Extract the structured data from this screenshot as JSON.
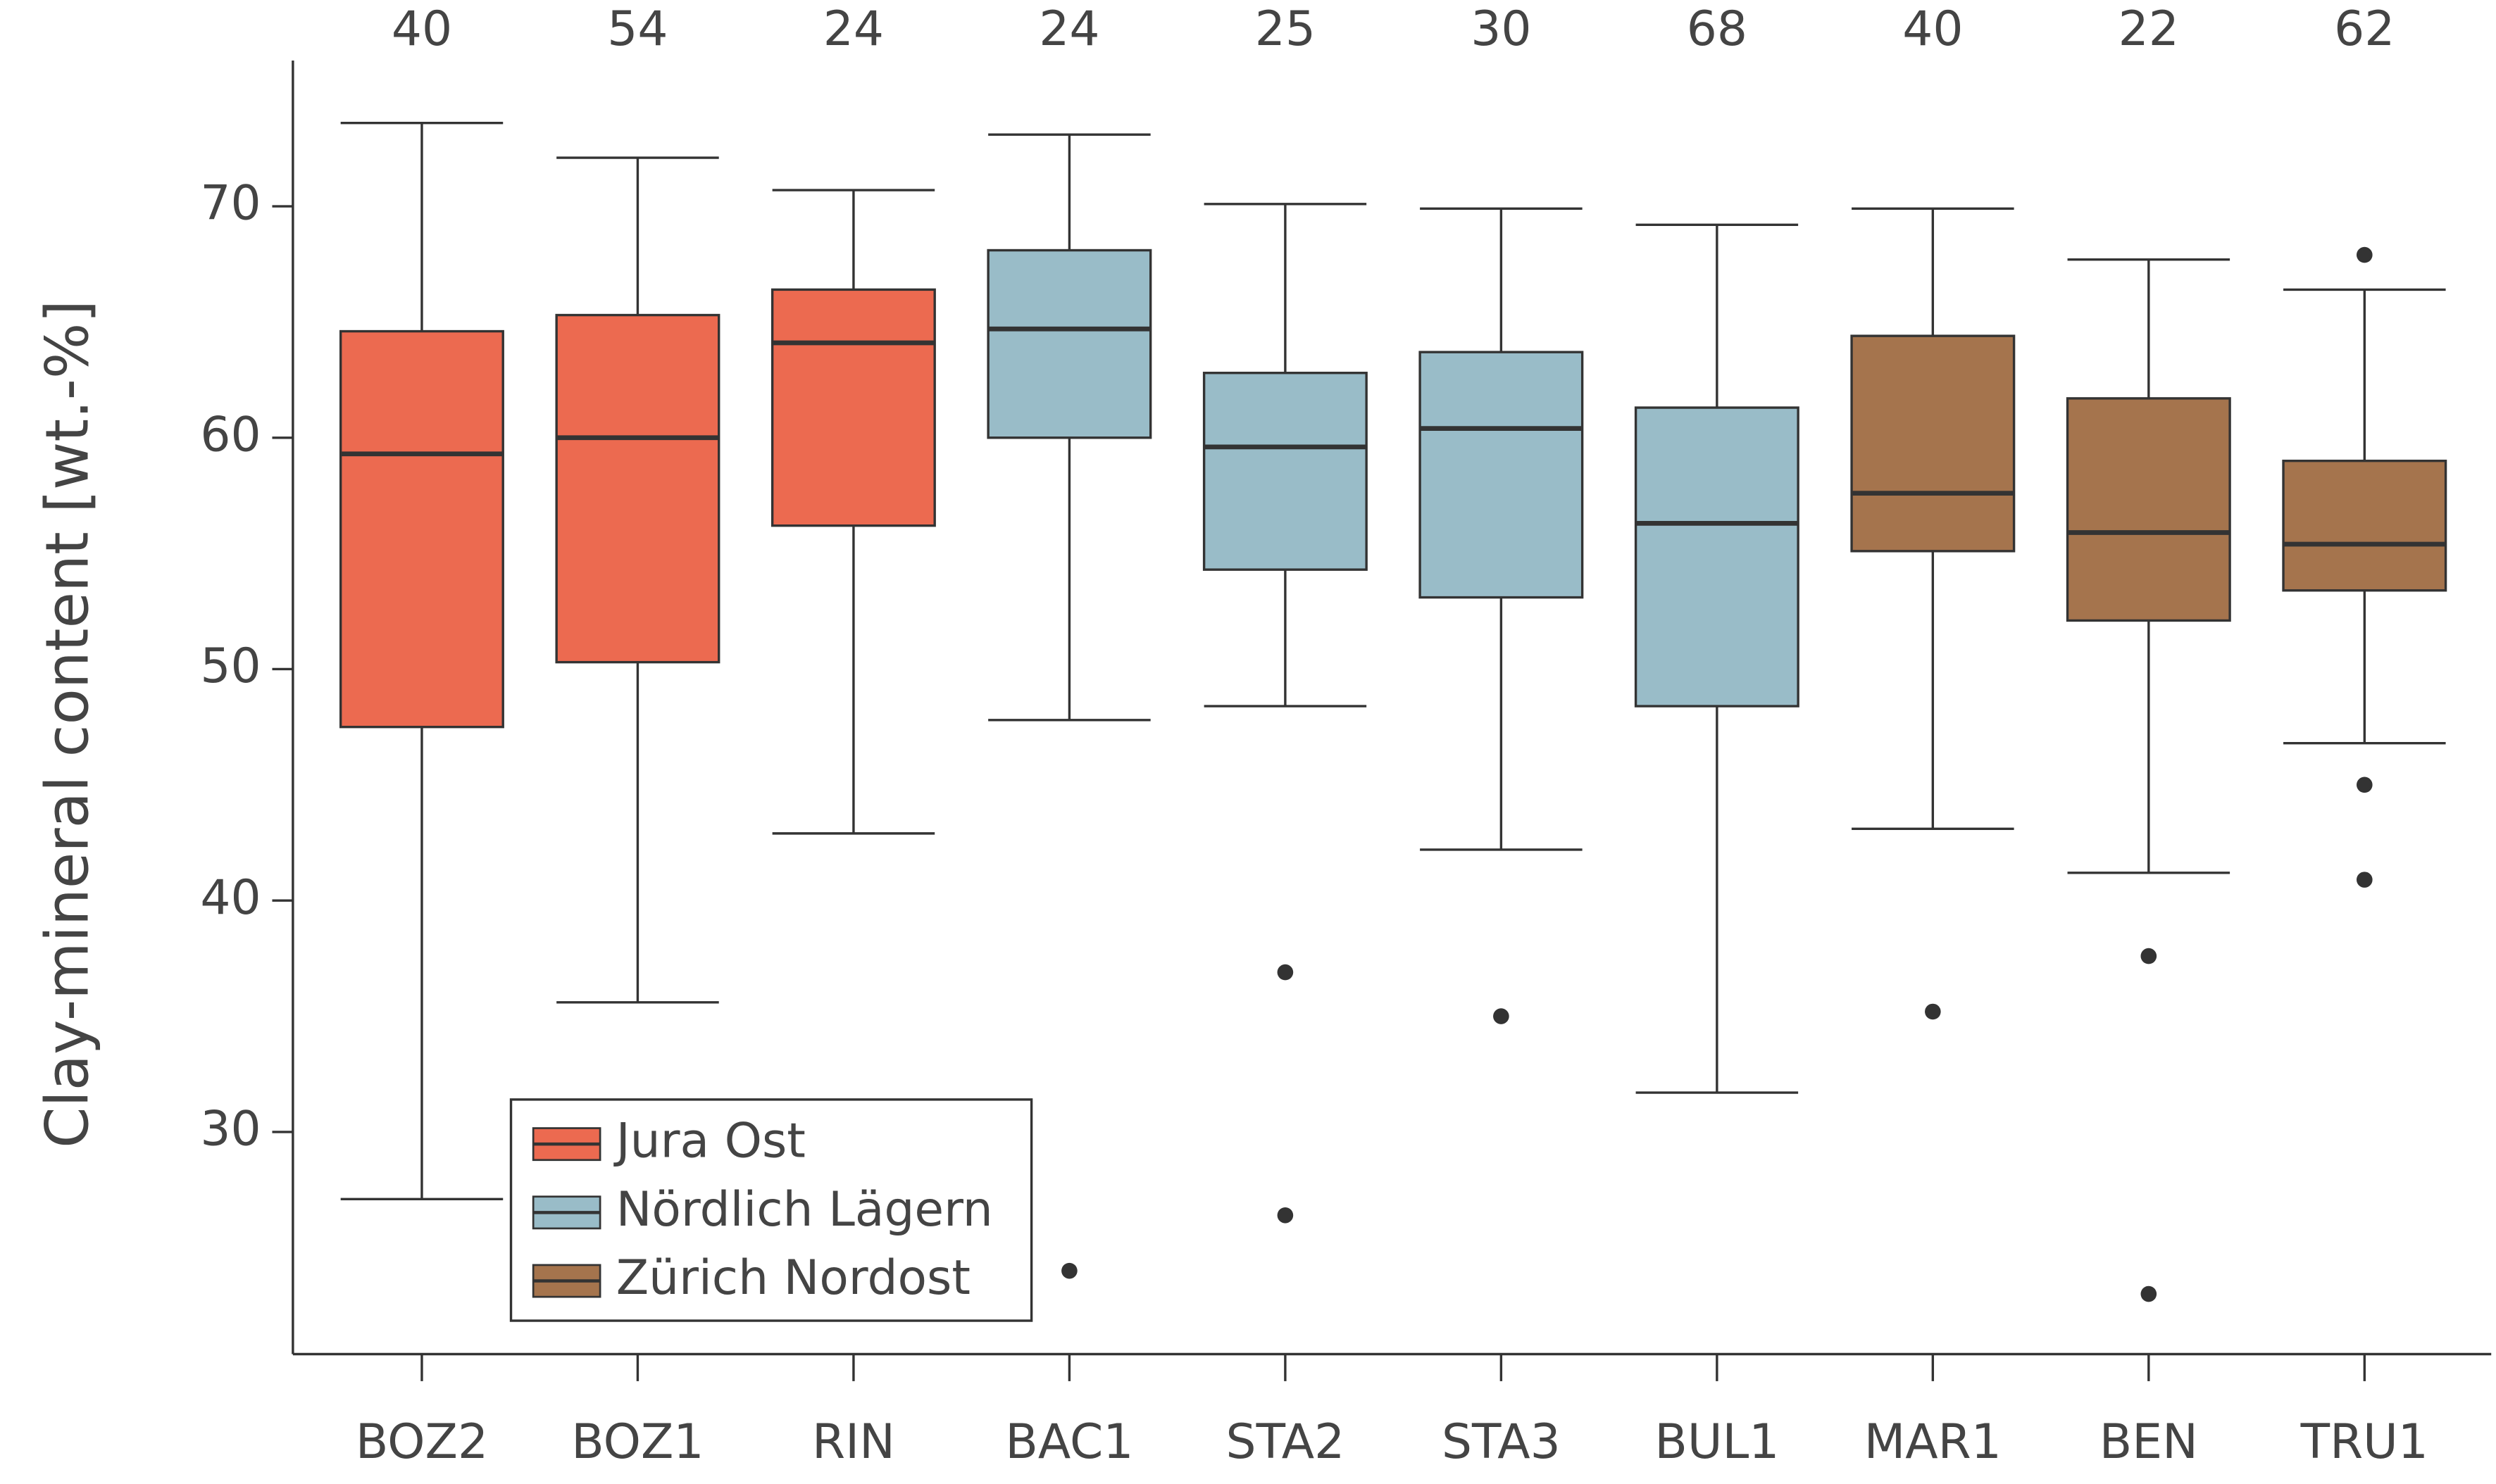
{
  "chart_data": {
    "type": "box",
    "y_label": "Clay-mineral content [wt.-%]",
    "ylim": [
      20.4,
      76.3
    ],
    "yticks": [
      30,
      40,
      50,
      60,
      70
    ],
    "legend": "lower left",
    "series": [
      {
        "name": "Jura Ost",
        "color": "#ec6a50",
        "boxes": [
          {
            "label": "BOZ2",
            "n": 40,
            "whisker_low": 27.1,
            "q1": 47.5,
            "median": 59.3,
            "q3": 64.6,
            "whisker_high": 73.6,
            "outliers": []
          },
          {
            "label": "BOZ1",
            "n": 54,
            "whisker_low": 35.6,
            "q1": 50.3,
            "median": 60.0,
            "q3": 65.3,
            "whisker_high": 72.1,
            "outliers": []
          },
          {
            "label": "RIN",
            "n": 24,
            "whisker_low": 42.9,
            "q1": 56.2,
            "median": 64.1,
            "q3": 66.4,
            "whisker_high": 70.7,
            "outliers": []
          }
        ]
      },
      {
        "name": "Nördlich Lägern",
        "color": "#99bcc8",
        "boxes": [
          {
            "label": "BAC1",
            "n": 24,
            "whisker_low": 47.8,
            "q1": 60.0,
            "median": 64.7,
            "q3": 68.1,
            "whisker_high": 73.1,
            "outliers": [
              24.0
            ]
          },
          {
            "label": "STA2",
            "n": 25,
            "whisker_low": 48.4,
            "q1": 54.3,
            "median": 59.6,
            "q3": 62.8,
            "whisker_high": 70.1,
            "outliers": [
              36.9,
              26.4
            ]
          },
          {
            "label": "STA3",
            "n": 30,
            "whisker_low": 42.2,
            "q1": 53.1,
            "median": 60.4,
            "q3": 63.7,
            "whisker_high": 69.9,
            "outliers": [
              35.0
            ]
          },
          {
            "label": "BUL1",
            "n": 68,
            "whisker_low": 31.7,
            "q1": 48.4,
            "median": 56.3,
            "q3": 61.3,
            "whisker_high": 69.2,
            "outliers": []
          }
        ]
      },
      {
        "name": "Zürich Nordost",
        "color": "#a5744d",
        "boxes": [
          {
            "label": "MAR1",
            "n": 40,
            "whisker_low": 43.1,
            "q1": 55.1,
            "median": 57.6,
            "q3": 64.4,
            "whisker_high": 69.9,
            "outliers": [
              35.2
            ]
          },
          {
            "label": "BEN",
            "n": 22,
            "whisker_low": 41.2,
            "q1": 52.1,
            "median": 55.9,
            "q3": 61.7,
            "whisker_high": 67.7,
            "outliers": [
              37.6,
              23.0
            ]
          },
          {
            "label": "TRU1",
            "n": 62,
            "whisker_low": 46.8,
            "q1": 53.4,
            "median": 55.4,
            "q3": 59.0,
            "whisker_high": 66.4,
            "outliers": [
              67.9,
              45.0,
              40.9
            ]
          }
        ]
      }
    ]
  }
}
